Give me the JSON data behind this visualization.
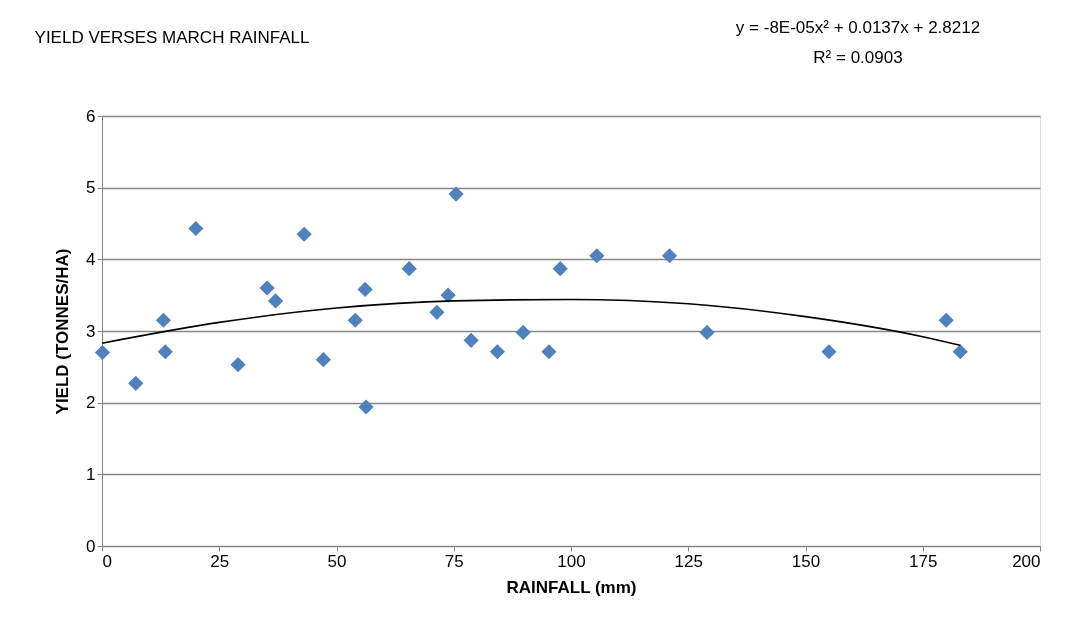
{
  "chart_data": {
    "type": "scatter",
    "title": "YIELD VERSES MARCH RAINFALL",
    "xlabel": "RAINFALL  (mm)",
    "ylabel": "YIELD  (TONNES/HA)",
    "annotations": [
      "y = -8E-05x² + 0.0137x + 2.8212",
      "R² = 0.0903"
    ],
    "xlim": [
      0,
      200
    ],
    "xticks": [
      0,
      25,
      50,
      75,
      100,
      125,
      150,
      175,
      200
    ],
    "ylim": [
      0,
      6
    ],
    "yticks": [
      0,
      1,
      2,
      3,
      4,
      5,
      6
    ],
    "grid": "y",
    "marker": "diamond",
    "series": [
      {
        "color": "#4f81bd",
        "x": [
          0.1,
          7.2,
          13.1,
          13.5,
          20.0,
          29.0,
          35.2,
          37.0,
          43.1,
          47.2,
          54.0,
          56.1,
          56.3,
          65.5,
          71.4,
          73.8,
          75.5,
          78.7,
          84.3,
          89.8,
          95.3,
          97.7,
          105.5,
          121.0,
          129.0,
          155.0,
          180.0,
          183.0
        ],
        "values": [
          2.7,
          2.27,
          3.15,
          2.71,
          4.43,
          2.53,
          3.6,
          3.42,
          4.35,
          2.6,
          3.15,
          3.58,
          1.94,
          3.87,
          3.26,
          3.5,
          4.91,
          2.87,
          2.71,
          2.98,
          2.71,
          3.87,
          4.05,
          4.05,
          2.98,
          2.71,
          3.15,
          2.71
        ]
      },
      {
        "type": "line",
        "color": "#000000",
        "marker": "none",
        "x": [
          0,
          25,
          50,
          75,
          100,
          125,
          150,
          175,
          183
        ],
        "values": [
          2.83,
          3.12,
          3.32,
          3.42,
          3.44,
          3.38,
          3.2,
          2.92,
          2.8
        ]
      }
    ]
  }
}
